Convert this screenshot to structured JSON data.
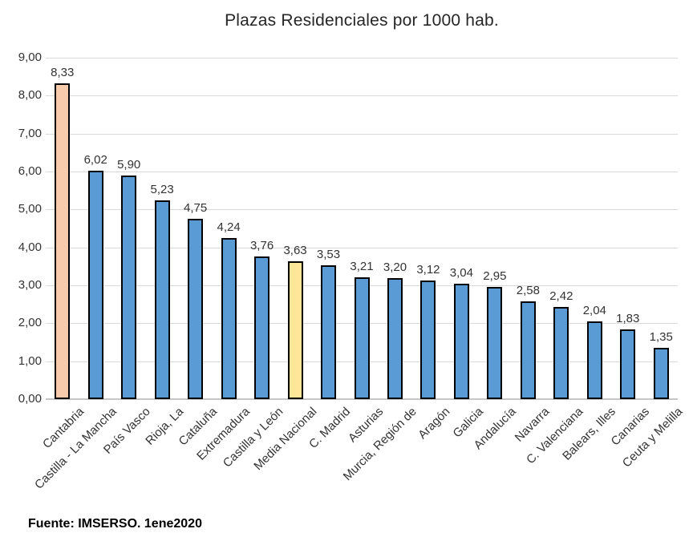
{
  "chart_data": {
    "type": "bar",
    "title": "Plazas Residenciales por 1000 hab.",
    "xlabel": "",
    "ylabel": "",
    "categories": [
      "Cantabria",
      "Castilla - La Mancha",
      "País Vasco",
      "Rioja, La",
      "Cataluña",
      "Extremadura",
      "Castilla y León",
      "Media Nacional",
      "C. Madrid",
      "Asturias",
      "Murcia, Región de",
      "Aragón",
      "Galicia",
      "Andalucía",
      "Navarra",
      "C. Valenciana",
      "Balears, Illes",
      "Canarias",
      "Ceuta y Melilla"
    ],
    "values": [
      8.33,
      6.02,
      5.9,
      5.23,
      4.75,
      4.24,
      3.76,
      3.63,
      3.53,
      3.21,
      3.2,
      3.12,
      3.04,
      2.95,
      2.58,
      2.42,
      2.04,
      1.83,
      1.35
    ],
    "value_labels": [
      "8,33",
      "6,02",
      "5,90",
      "5,23",
      "4,75",
      "4,24",
      "3,76",
      "3,63",
      "3,53",
      "3,21",
      "3,20",
      "3,12",
      "3,04",
      "2,95",
      "2,58",
      "2,42",
      "2,04",
      "1,83",
      "1,35"
    ],
    "bar_colors": [
      "#F8CBAD",
      "#5B9BD5",
      "#5B9BD5",
      "#5B9BD5",
      "#5B9BD5",
      "#5B9BD5",
      "#5B9BD5",
      "#FFE699",
      "#5B9BD5",
      "#5B9BD5",
      "#5B9BD5",
      "#5B9BD5",
      "#5B9BD5",
      "#5B9BD5",
      "#5B9BD5",
      "#5B9BD5",
      "#5B9BD5",
      "#5B9BD5",
      "#5B9BD5"
    ],
    "default_bar_color": "#5B9BD5",
    "highlights": [
      {
        "category": "Cantabria",
        "color": "#F8CBAD"
      },
      {
        "category": "Media Nacional",
        "color": "#FFE699"
      }
    ],
    "bar_border_color": "#000000",
    "ylim": [
      0,
      9
    ],
    "ytick_labels": [
      "0,00",
      "1,00",
      "2,00",
      "3,00",
      "4,00",
      "5,00",
      "6,00",
      "7,00",
      "8,00",
      "9,00"
    ],
    "grid": true,
    "gridline_color": "#D9D9D9",
    "legend_position": "none"
  },
  "source_note": "Fuente: IMSERSO. 1ene2020"
}
